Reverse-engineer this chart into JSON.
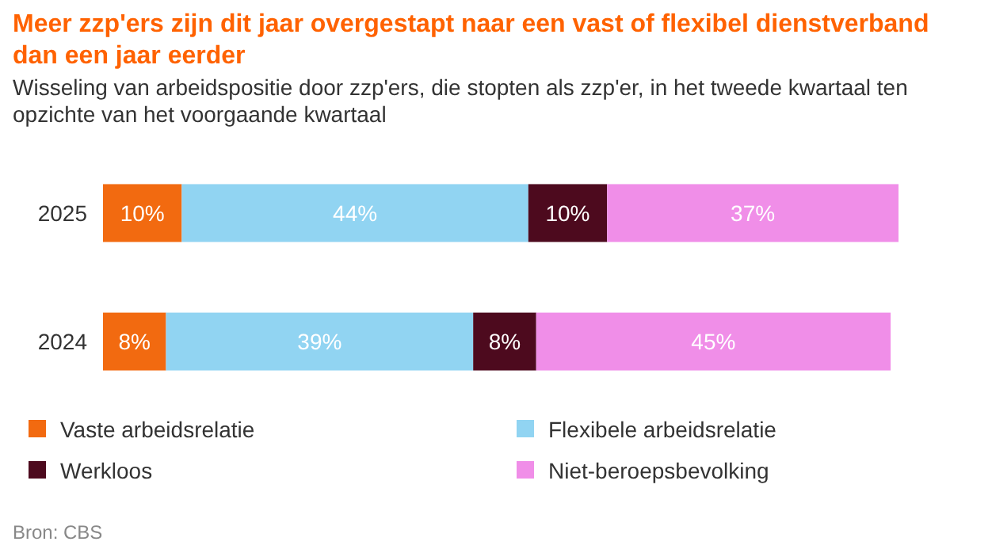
{
  "chart_data": {
    "type": "bar",
    "orientation": "horizontal",
    "stacked": true,
    "title": "Meer zzp'ers zijn dit jaar overgestapt naar een vast of flexibel dienstverband dan een jaar eerder",
    "subtitle": "Wisseling van arbeidspositie door zzp'ers, die stopten als zzp'er, in het tweede kwartaal ten opzichte van het voorgaande kwartaal",
    "categories": [
      "2025",
      "2024"
    ],
    "series": [
      {
        "name": "Vaste arbeidsrelatie",
        "color": "#f26a10",
        "values": [
          10,
          8
        ],
        "value_labels": [
          "10%",
          "8%"
        ]
      },
      {
        "name": "Flexibele arbeidsrelatie",
        "color": "#91d4f2",
        "values": [
          44,
          39
        ],
        "value_labels": [
          "44%",
          "39%"
        ]
      },
      {
        "name": "Werkloos",
        "color": "#4d0a1e",
        "values": [
          10,
          8
        ],
        "value_labels": [
          "10%",
          "8%"
        ]
      },
      {
        "name": "Niet-beroepsbevolking",
        "color": "#f08ee8",
        "values": [
          37,
          45
        ],
        "value_labels": [
          "37%",
          "45%"
        ]
      }
    ],
    "legend": "bottom",
    "annotations": [
      "Bron: CBS"
    ]
  }
}
